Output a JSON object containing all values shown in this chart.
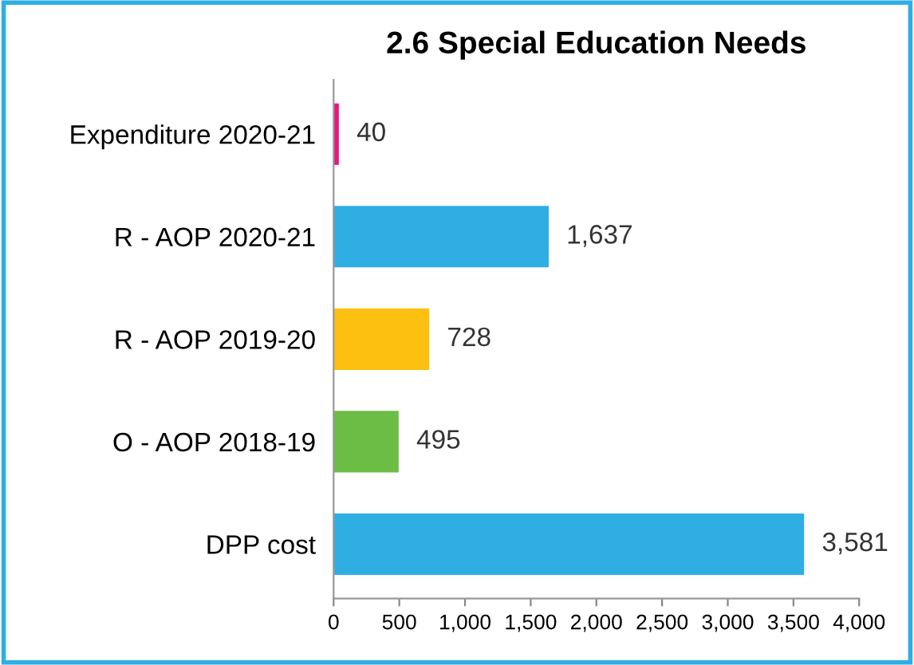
{
  "chart_data": {
    "type": "bar",
    "orientation": "horizontal",
    "title": "2.6 Special Education Needs",
    "categories": [
      "Expenditure 2020-21",
      "R - AOP 2020-21",
      "R - AOP 2019-20",
      "O - AOP 2018-19",
      "DPP cost"
    ],
    "values": [
      40,
      1637,
      728,
      495,
      3581
    ],
    "value_labels": [
      "40",
      "1,637",
      "728",
      "495",
      "3,581"
    ],
    "colors": [
      "#e8177d",
      "#2eaee3",
      "#fdc010",
      "#6cbd45",
      "#2eaee3"
    ],
    "xlim": [
      0,
      4000
    ],
    "xticks": [
      0,
      500,
      {
        "value": 1000,
        "label": "1,000"
      },
      {
        "value": 1500,
        "label": "1,500"
      },
      {
        "value": 2000,
        "label": "2,000"
      },
      {
        "value": 2500,
        "label": "2,500"
      },
      {
        "value": 3000,
        "label": "3,000"
      },
      {
        "value": 3500,
        "label": "3,500"
      },
      {
        "value": 4000,
        "label": "4,000"
      }
    ],
    "grid": false,
    "legend": false
  }
}
